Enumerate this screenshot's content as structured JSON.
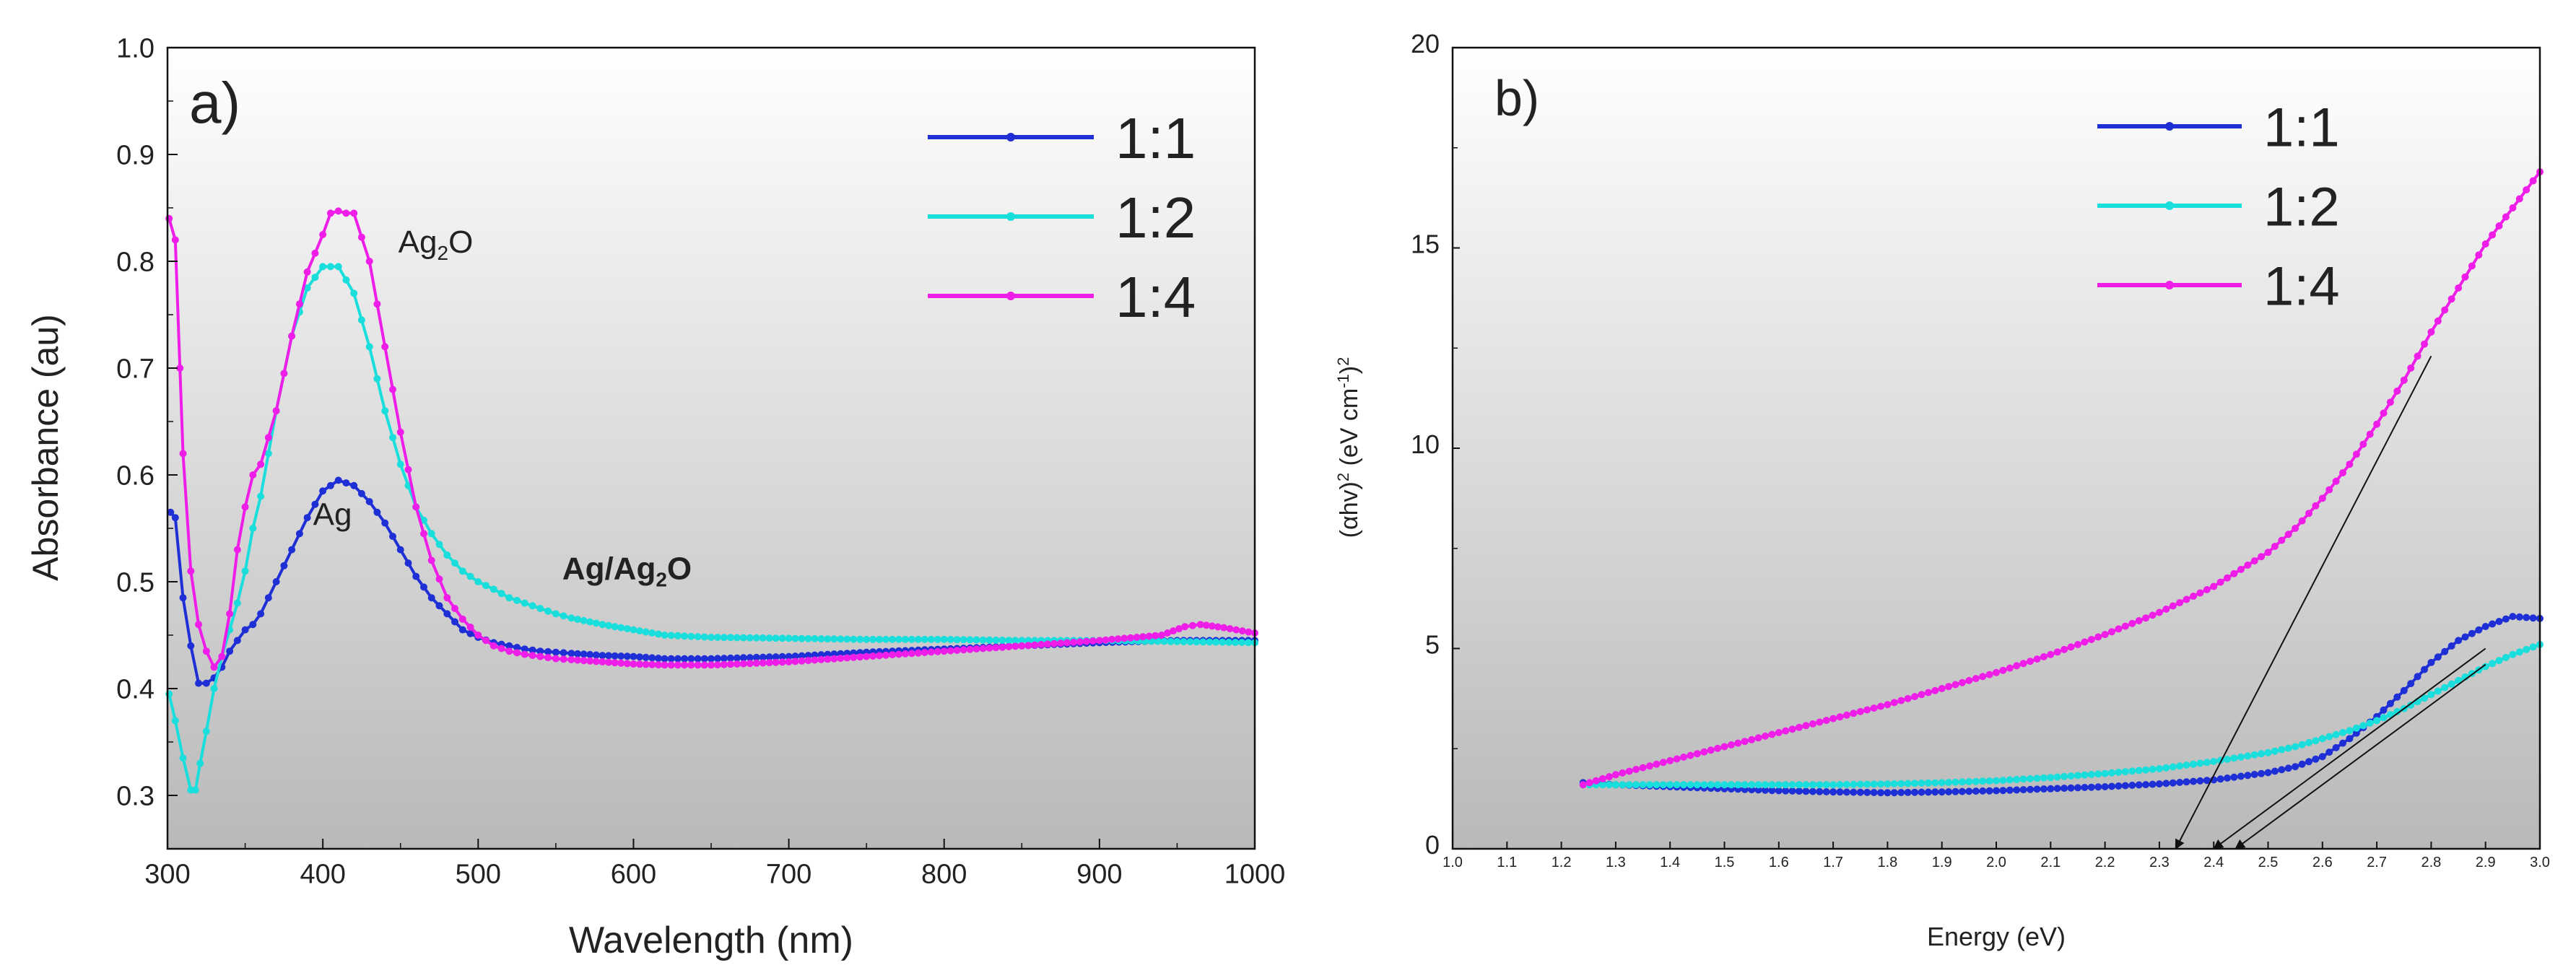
{
  "chart_data": [
    {
      "type": "line",
      "panel_label": "a)",
      "xlabel": "Wavelength (nm)",
      "ylabel": "Absorbance (au)",
      "xlim": [
        300,
        1000
      ],
      "ylim": [
        0.25,
        1.0
      ],
      "xticks": [
        300,
        400,
        500,
        600,
        700,
        800,
        900,
        1000
      ],
      "yticks": [
        0.3,
        0.4,
        0.5,
        0.6,
        0.7,
        0.8,
        0.9,
        1.0
      ],
      "xtick_labels": [
        "300",
        "400",
        "500",
        "600",
        "700",
        "800",
        "900",
        "1000"
      ],
      "ytick_labels": [
        "0.3",
        "0.4",
        "0.5",
        "0.6",
        "0.7",
        "0.8",
        "0.9",
        "1.0"
      ],
      "legend_position": "top-right",
      "series": [
        {
          "name": "1:1",
          "color": "#1f2fd6",
          "x": [
            302,
            305,
            310,
            315,
            320,
            325,
            330,
            335,
            340,
            345,
            350,
            355,
            360,
            370,
            380,
            390,
            400,
            410,
            420,
            430,
            440,
            450,
            460,
            470,
            480,
            490,
            500,
            510,
            520,
            530,
            540,
            550,
            560,
            580,
            600,
            620,
            650,
            700,
            750,
            800,
            850,
            900,
            950,
            1000
          ],
          "y": [
            0.565,
            0.56,
            0.485,
            0.44,
            0.405,
            0.405,
            0.41,
            0.42,
            0.435,
            0.445,
            0.455,
            0.46,
            0.47,
            0.5,
            0.53,
            0.56,
            0.585,
            0.595,
            0.59,
            0.575,
            0.555,
            0.53,
            0.505,
            0.485,
            0.47,
            0.455,
            0.448,
            0.443,
            0.44,
            0.437,
            0.435,
            0.434,
            0.433,
            0.431,
            0.43,
            0.428,
            0.428,
            0.43,
            0.434,
            0.437,
            0.44,
            0.443,
            0.445,
            0.445
          ]
        },
        {
          "name": "1:2",
          "color": "#19dedb",
          "x": [
            301,
            305,
            310,
            315,
            318,
            321,
            325,
            330,
            335,
            340,
            345,
            350,
            355,
            360,
            370,
            380,
            390,
            400,
            410,
            420,
            430,
            440,
            450,
            460,
            470,
            480,
            490,
            500,
            510,
            520,
            530,
            540,
            550,
            560,
            580,
            600,
            620,
            650,
            700,
            750,
            800,
            850,
            900,
            950,
            1000
          ],
          "y": [
            0.395,
            0.37,
            0.335,
            0.305,
            0.305,
            0.33,
            0.36,
            0.4,
            0.43,
            0.455,
            0.48,
            0.51,
            0.55,
            0.58,
            0.66,
            0.73,
            0.775,
            0.795,
            0.795,
            0.77,
            0.72,
            0.66,
            0.61,
            0.57,
            0.545,
            0.525,
            0.51,
            0.5,
            0.493,
            0.485,
            0.48,
            0.475,
            0.47,
            0.466,
            0.46,
            0.455,
            0.45,
            0.448,
            0.447,
            0.446,
            0.446,
            0.445,
            0.445,
            0.444,
            0.443
          ]
        },
        {
          "name": "1:4",
          "color": "#ee1ee8",
          "x": [
            301,
            305,
            308,
            310,
            315,
            320,
            325,
            330,
            335,
            340,
            345,
            350,
            355,
            360,
            370,
            380,
            390,
            400,
            405,
            410,
            415,
            420,
            430,
            440,
            450,
            460,
            470,
            480,
            490,
            500,
            510,
            520,
            530,
            540,
            550,
            560,
            580,
            600,
            620,
            650,
            700,
            750,
            800,
            850,
            900,
            940,
            955,
            965,
            980,
            1000
          ],
          "y": [
            0.84,
            0.82,
            0.7,
            0.62,
            0.51,
            0.46,
            0.435,
            0.42,
            0.43,
            0.47,
            0.53,
            0.57,
            0.6,
            0.61,
            0.66,
            0.73,
            0.79,
            0.825,
            0.845,
            0.847,
            0.845,
            0.845,
            0.8,
            0.72,
            0.64,
            0.57,
            0.52,
            0.485,
            0.465,
            0.45,
            0.44,
            0.435,
            0.432,
            0.43,
            0.428,
            0.427,
            0.425,
            0.423,
            0.422,
            0.422,
            0.425,
            0.43,
            0.435,
            0.44,
            0.445,
            0.45,
            0.458,
            0.46,
            0.457,
            0.452
          ]
        }
      ],
      "annotations": [
        {
          "text_parts": [
            "Ag",
            "2",
            "O"
          ],
          "color": "#ee1ee8",
          "anchor_series": "1:4",
          "near_x": 430
        },
        {
          "text_parts": [
            "Ag/Ag",
            "2",
            "O"
          ],
          "color": "#19dedb",
          "anchor_series": "1:2",
          "near_x": 510
        },
        {
          "text_parts": [
            "Ag"
          ],
          "color": "#1f2fd6",
          "anchor_series": "1:1",
          "near_x": 412
        }
      ]
    },
    {
      "type": "line",
      "panel_label": "b)",
      "xlabel": "Energy (eV)",
      "ylabel_parts": [
        "(αhv)",
        "2",
        " (eV cm",
        "-1",
        ")",
        "2"
      ],
      "xlim": [
        1.0,
        3.0
      ],
      "ylim": [
        0,
        20
      ],
      "xticks": [
        1.0,
        1.1,
        1.2,
        1.3,
        1.4,
        1.5,
        1.6,
        1.7,
        1.8,
        1.9,
        2.0,
        2.1,
        2.2,
        2.3,
        2.4,
        2.5,
        2.6,
        2.7,
        2.8,
        2.9,
        3.0
      ],
      "yticks": [
        0,
        5,
        10,
        15,
        20
      ],
      "xtick_labels": [
        "1.0",
        "1.1",
        "1.2",
        "1.3",
        "1.4",
        "1.5",
        "1.6",
        "1.7",
        "1.8",
        "1.9",
        "2.0",
        "2.1",
        "2.2",
        "2.3",
        "2.4",
        "2.5",
        "2.6",
        "2.7",
        "2.8",
        "2.9",
        "3.0"
      ],
      "ytick_labels": [
        "0",
        "5",
        "10",
        "15",
        "20"
      ],
      "legend_position": "top-right",
      "series": [
        {
          "name": "1:1",
          "color": "#1f2fd6",
          "x": [
            1.24,
            1.3,
            1.4,
            1.5,
            1.6,
            1.7,
            1.8,
            1.9,
            2.0,
            2.1,
            2.2,
            2.3,
            2.4,
            2.5,
            2.55,
            2.6,
            2.65,
            2.7,
            2.75,
            2.8,
            2.85,
            2.9,
            2.95,
            3.0
          ],
          "y": [
            1.65,
            1.6,
            1.55,
            1.5,
            1.45,
            1.42,
            1.4,
            1.42,
            1.45,
            1.5,
            1.55,
            1.62,
            1.72,
            1.9,
            2.05,
            2.3,
            2.75,
            3.3,
            3.95,
            4.65,
            5.2,
            5.55,
            5.8,
            5.75
          ]
        },
        {
          "name": "1:2",
          "color": "#19dedb",
          "x": [
            1.24,
            1.3,
            1.4,
            1.5,
            1.6,
            1.7,
            1.8,
            1.9,
            2.0,
            2.1,
            2.2,
            2.3,
            2.4,
            2.5,
            2.55,
            2.6,
            2.65,
            2.7,
            2.75,
            2.8,
            2.85,
            2.9,
            2.95,
            3.0
          ],
          "y": [
            1.6,
            1.6,
            1.6,
            1.6,
            1.6,
            1.6,
            1.62,
            1.65,
            1.7,
            1.78,
            1.88,
            2.0,
            2.18,
            2.4,
            2.55,
            2.75,
            2.95,
            3.2,
            3.5,
            3.85,
            4.2,
            4.55,
            4.85,
            5.1
          ]
        },
        {
          "name": "1:4",
          "color": "#ee1ee8",
          "x": [
            1.24,
            1.3,
            1.4,
            1.5,
            1.6,
            1.7,
            1.8,
            1.9,
            2.0,
            2.1,
            2.2,
            2.3,
            2.4,
            2.5,
            2.55,
            2.6,
            2.65,
            2.7,
            2.75,
            2.8,
            2.85,
            2.9,
            2.95,
            3.0
          ],
          "y": [
            1.6,
            1.85,
            2.2,
            2.55,
            2.9,
            3.25,
            3.6,
            4.0,
            4.4,
            4.85,
            5.35,
            5.9,
            6.55,
            7.4,
            8.0,
            8.75,
            9.6,
            10.6,
            11.7,
            12.9,
            14.0,
            15.1,
            16.0,
            16.9
          ]
        }
      ],
      "tangent_lines": [
        {
          "series": "1:4",
          "from": [
            2.8,
            12.3
          ],
          "to": [
            2.33,
            0
          ]
        },
        {
          "series": "1:1",
          "from": [
            2.9,
            5.0
          ],
          "to": [
            2.4,
            0
          ]
        },
        {
          "series": "1:2",
          "from": [
            2.9,
            4.6
          ],
          "to": [
            2.44,
            0
          ]
        }
      ]
    }
  ]
}
